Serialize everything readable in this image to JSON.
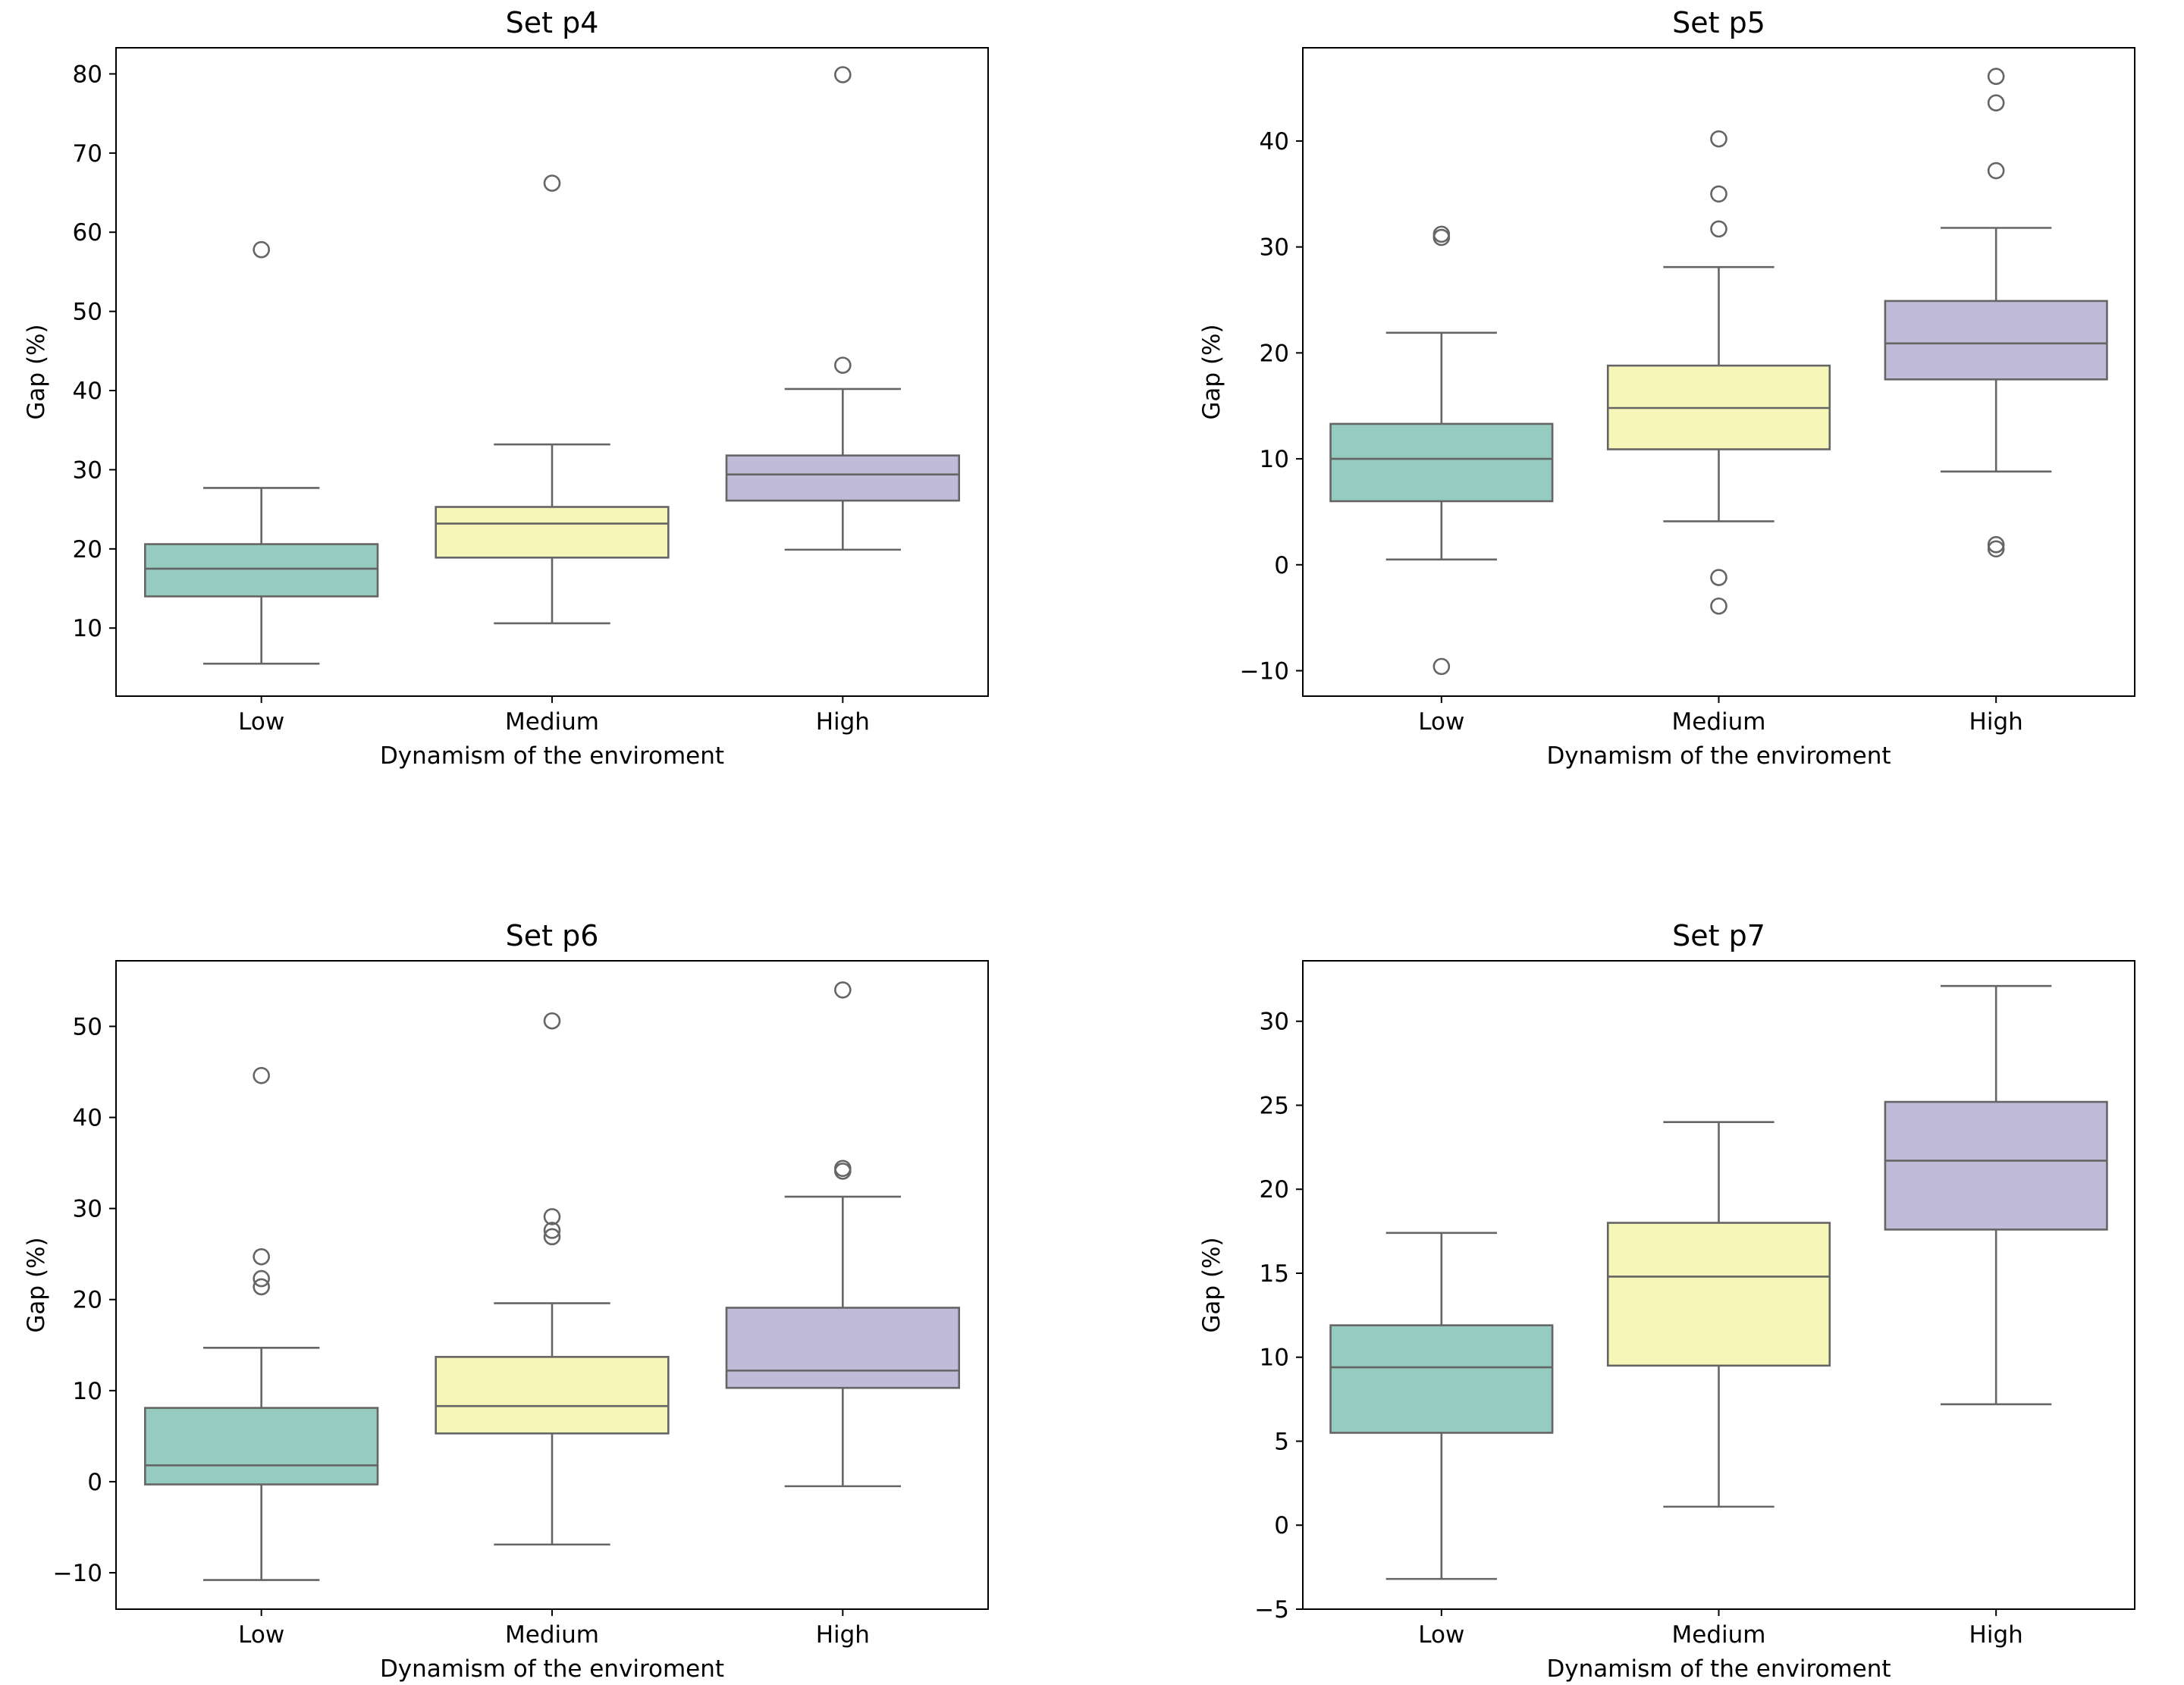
{
  "chart_data": [
    {
      "type": "box",
      "title": "Set p4",
      "xlabel": "Dynamism of the enviroment",
      "ylabel": "Gap (%)",
      "ylim": [
        1.4,
        83.3
      ],
      "yticks": [
        10,
        20,
        30,
        40,
        50,
        60,
        70,
        80
      ],
      "categories": [
        "Low",
        "Medium",
        "High"
      ],
      "boxes": [
        {
          "category": "Low",
          "whisker_low": 5.5,
          "q1": 14.0,
          "median": 17.5,
          "q3": 20.6,
          "whisker_high": 27.7,
          "outliers": [
            57.8
          ]
        },
        {
          "category": "Medium",
          "whisker_low": 10.6,
          "q1": 18.9,
          "median": 23.2,
          "q3": 25.3,
          "whisker_high": 33.2,
          "outliers": [
            66.2
          ]
        },
        {
          "category": "High",
          "whisker_low": 19.9,
          "q1": 26.1,
          "median": 29.4,
          "q3": 31.8,
          "whisker_high": 40.2,
          "outliers": [
            43.2,
            79.9
          ]
        }
      ]
    },
    {
      "type": "box",
      "title": "Set p5",
      "xlabel": "Dynamism of the enviroment",
      "ylabel": "Gap (%)",
      "ylim": [
        -12.4,
        48.8
      ],
      "yticks": [
        -10,
        0,
        10,
        20,
        30,
        40
      ],
      "categories": [
        "Low",
        "Medium",
        "High"
      ],
      "boxes": [
        {
          "category": "Low",
          "whisker_low": 0.5,
          "q1": 6.0,
          "median": 10.0,
          "q3": 13.3,
          "whisker_high": 21.9,
          "outliers": [
            -9.6,
            30.9,
            31.2
          ]
        },
        {
          "category": "Medium",
          "whisker_low": 4.1,
          "q1": 10.9,
          "median": 14.8,
          "q3": 18.8,
          "whisker_high": 28.1,
          "outliers": [
            -3.9,
            -1.2,
            31.7,
            35.0,
            40.2
          ]
        },
        {
          "category": "High",
          "whisker_low": 8.8,
          "q1": 17.5,
          "median": 20.9,
          "q3": 24.9,
          "whisker_high": 31.8,
          "outliers": [
            1.5,
            1.9,
            37.2,
            43.6,
            46.1
          ]
        }
      ]
    },
    {
      "type": "box",
      "title": "Set p6",
      "xlabel": "Dynamism of the enviroment",
      "ylabel": "Gap (%)",
      "ylim": [
        -14.0,
        57.2
      ],
      "yticks": [
        -10,
        0,
        10,
        20,
        30,
        40,
        50
      ],
      "categories": [
        "Low",
        "Medium",
        "High"
      ],
      "boxes": [
        {
          "category": "Low",
          "whisker_low": -10.8,
          "q1": -0.3,
          "median": 1.8,
          "q3": 8.1,
          "whisker_high": 14.7,
          "outliers": [
            21.4,
            22.3,
            24.7,
            44.6
          ]
        },
        {
          "category": "Medium",
          "whisker_low": -6.9,
          "q1": 5.3,
          "median": 8.3,
          "q3": 13.7,
          "whisker_high": 19.6,
          "outliers": [
            26.9,
            27.6,
            29.1,
            50.6
          ]
        },
        {
          "category": "High",
          "whisker_low": -0.5,
          "q1": 10.3,
          "median": 12.2,
          "q3": 19.1,
          "whisker_high": 31.3,
          "outliers": [
            34.1,
            34.4,
            54.0
          ]
        }
      ]
    },
    {
      "type": "box",
      "title": "Set p7",
      "xlabel": "Dynamism of the enviroment",
      "ylabel": "Gap (%)",
      "ylim": [
        -5.0,
        33.6
      ],
      "yticks": [
        -5,
        0,
        5,
        10,
        15,
        20,
        25,
        30
      ],
      "categories": [
        "Low",
        "Medium",
        "High"
      ],
      "boxes": [
        {
          "category": "Low",
          "whisker_low": -3.2,
          "q1": 5.5,
          "median": 9.4,
          "q3": 11.9,
          "whisker_high": 17.4,
          "outliers": []
        },
        {
          "category": "Medium",
          "whisker_low": 1.1,
          "q1": 9.5,
          "median": 14.8,
          "q3": 18.0,
          "whisker_high": 24.0,
          "outliers": []
        },
        {
          "category": "High",
          "whisker_low": 7.2,
          "q1": 17.6,
          "median": 21.7,
          "q3": 25.2,
          "whisker_high": 32.1,
          "outliers": []
        }
      ]
    }
  ],
  "colors": {
    "low": "#96cbc0",
    "medium": "#f6f6b9",
    "high": "#bfbbd8",
    "line": "#656565",
    "frame": "#000000"
  }
}
